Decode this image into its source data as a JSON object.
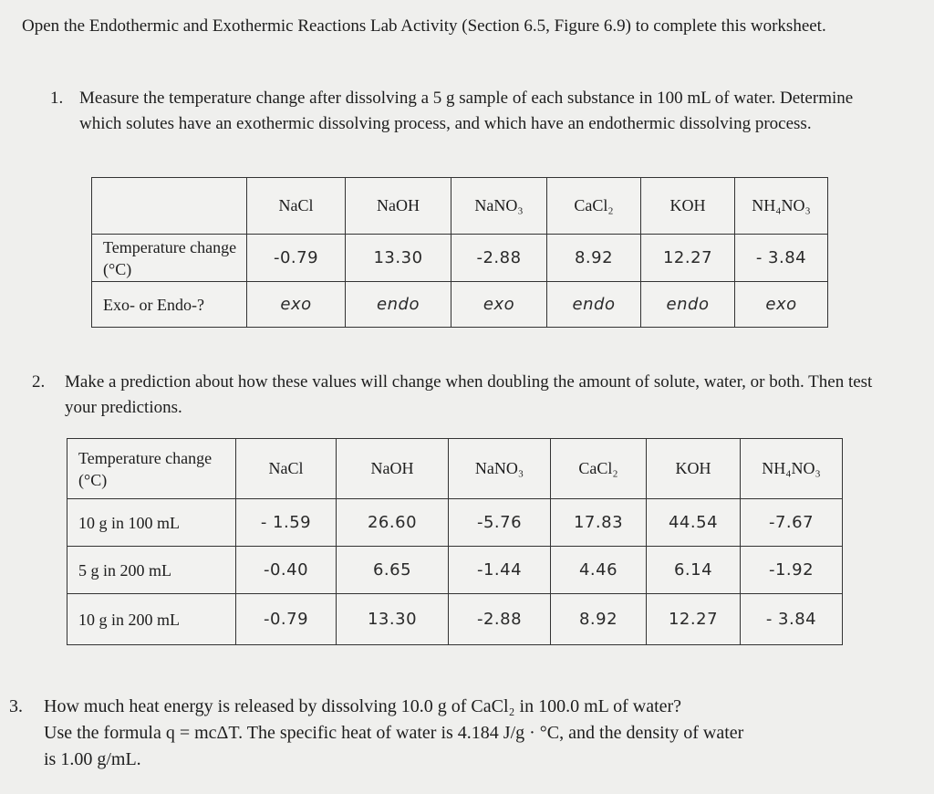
{
  "intro": "Open the Endothermic and Exothermic Reactions Lab Activity (Section 6.5, Figure 6.9) to complete this worksheet.",
  "questions": {
    "q1": {
      "number": "1.",
      "text": "Measure the temperature change after dissolving a 5 g sample of each substance in 100 mL of water. Determine which solutes have an exothermic dissolving process, and which have an endothermic dissolving process."
    },
    "q2": {
      "number": "2.",
      "text": "Make a prediction about how these values will change when doubling the amount of solute, water, or both. Then test your predictions."
    },
    "q3": {
      "number": "3.",
      "line1": "How much heat energy is released by dissolving 10.0 g of CaCl₂ in 100.0 mL of water?",
      "line2": "Use the formula q = mcΔT. The specific heat of water is 4.184 J/g · °C, and the density of water",
      "line3": "is 1.00 g/mL."
    }
  },
  "table1": {
    "headers": [
      "",
      "NaCl",
      "NaOH",
      "NaNO₃",
      "CaCl₂",
      "KOH",
      "NH₄NO₃"
    ],
    "temp_label": "Temperature change (°C)",
    "temp_values": [
      "-0.79",
      "13.30",
      "-2.88",
      "8.92",
      "12.27",
      "- 3.84"
    ],
    "type_label": "Exo- or Endo-?",
    "type_values": [
      "exo",
      "endo",
      "exo",
      "endo",
      "endo",
      "exo"
    ]
  },
  "table2": {
    "headers": [
      "Temperature change (°C)",
      "NaCl",
      "NaOH",
      "NaNO₃",
      "CaCl₂",
      "KOH",
      "NH₄NO₃"
    ],
    "rows": [
      {
        "label": "10 g in 100 mL",
        "values": [
          "- 1.59",
          "26.60",
          "-5.76",
          "17.83",
          "44.54",
          "-7.67"
        ]
      },
      {
        "label": "5 g in 200 mL",
        "values": [
          "-0.40",
          "6.65",
          "-1.44",
          "4.46",
          "6.14",
          "-1.92"
        ]
      },
      {
        "label": "10 g in 200 mL",
        "values": [
          "-0.79",
          "13.30",
          "-2.88",
          "8.92",
          "12.27",
          "- 3.84"
        ]
      }
    ]
  }
}
